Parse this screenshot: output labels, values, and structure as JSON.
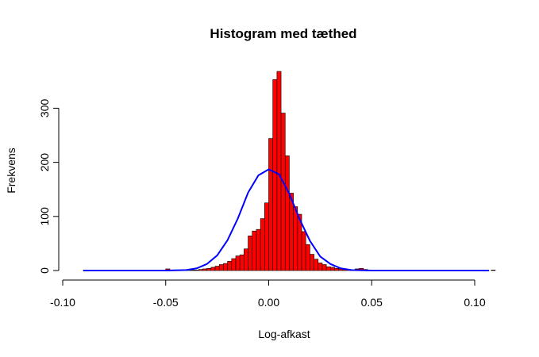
{
  "chart_data": {
    "type": "bar",
    "title": "Histogram med tæthed",
    "xlabel": "Log-afkast",
    "ylabel": "Frekvens",
    "xlim": [
      -0.1,
      0.1
    ],
    "ylim": [
      0,
      370
    ],
    "x_ticks": [
      -0.1,
      -0.05,
      0.0,
      0.05,
      0.1
    ],
    "x_tick_labels": [
      "-0.10",
      "-0.05",
      "0.00",
      "0.05",
      "0.10"
    ],
    "y_ticks": [
      0,
      100,
      200,
      300
    ],
    "y_tick_labels": [
      "0",
      "100",
      "200",
      "300"
    ],
    "grid": false,
    "colors": {
      "bar_fill": "#ff0000",
      "bar_border": "#000000",
      "density_line": "#0000ff"
    },
    "bins": {
      "start": -0.09,
      "width": 0.002,
      "counts": [
        1,
        0,
        0,
        0,
        0,
        0,
        0,
        0,
        0,
        0,
        0,
        0,
        0,
        0,
        0,
        0,
        0,
        0,
        0,
        0,
        3,
        0,
        0,
        0,
        0,
        1,
        1,
        1,
        2,
        3,
        4,
        6,
        8,
        11,
        13,
        17,
        22,
        27,
        29,
        40,
        64,
        73,
        76,
        96,
        125,
        244,
        353,
        368,
        291,
        212,
        143,
        118,
        104,
        72,
        48,
        30,
        21,
        14,
        11,
        7,
        6,
        4,
        3,
        2,
        2,
        1,
        3,
        4,
        2,
        0,
        0,
        0,
        0,
        0,
        0,
        0,
        0,
        0,
        0,
        0,
        0,
        0,
        0,
        0,
        0,
        0,
        0,
        0,
        0,
        0,
        0,
        0,
        0,
        0,
        0,
        0,
        0,
        0,
        0,
        1
      ]
    },
    "density_curve": {
      "name": "",
      "x": [
        -0.09,
        -0.06,
        -0.05,
        -0.04,
        -0.035,
        -0.03,
        -0.025,
        -0.02,
        -0.015,
        -0.01,
        -0.005,
        0.0,
        0.005,
        0.01,
        0.015,
        0.02,
        0.025,
        0.03,
        0.035,
        0.04,
        0.05,
        0.06,
        0.08,
        0.107
      ],
      "y": [
        0,
        0,
        0,
        1,
        4,
        12,
        28,
        56,
        96,
        144,
        176,
        187,
        178,
        142,
        95,
        55,
        26,
        12,
        4,
        1,
        0,
        0,
        0,
        0
      ]
    }
  }
}
